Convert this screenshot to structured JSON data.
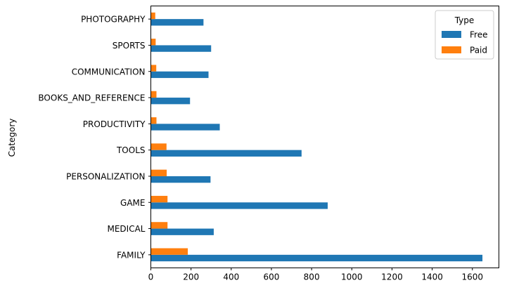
{
  "chart_data": {
    "type": "bar",
    "orientation": "horizontal",
    "categories": [
      "FAMILY",
      "MEDICAL",
      "GAME",
      "PERSONALIZATION",
      "TOOLS",
      "PRODUCTIVITY",
      "BOOKS_AND_REFERENCE",
      "COMMUNICATION",
      "SPORTS",
      "PHOTOGRAPHY"
    ],
    "series": [
      {
        "name": "Free",
        "color": "#1f77b4",
        "values": [
          1650,
          313,
          880,
          297,
          750,
          343,
          195,
          287,
          300,
          262
        ]
      },
      {
        "name": "Paid",
        "color": "#ff7f0e",
        "values": [
          184,
          83,
          83,
          79,
          78,
          28,
          28,
          27,
          24,
          22
        ]
      }
    ],
    "title": "",
    "xlabel": "",
    "ylabel": "Category",
    "xlim": [
      0,
      1732
    ],
    "xticks": [
      0,
      200,
      400,
      600,
      800,
      1000,
      1200,
      1400,
      1600
    ],
    "grid": false,
    "legend": {
      "title": "Type",
      "placement": "top-right"
    }
  }
}
